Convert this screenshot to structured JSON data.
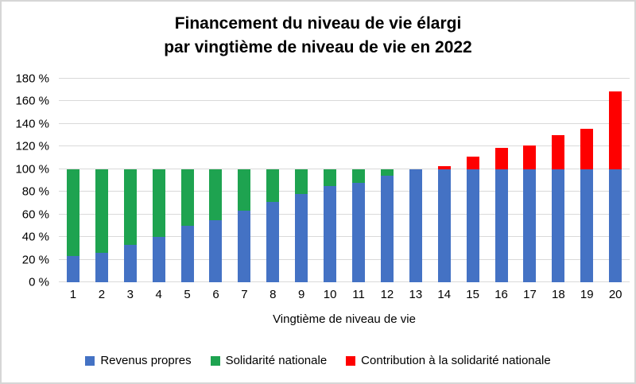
{
  "title": {
    "line1": "Financement du niveau de vie élargi",
    "line2": "par vingtième de niveau de vie en 2022"
  },
  "chart_data": {
    "type": "bar",
    "stacked": true,
    "title": "Financement du niveau de vie élargi par vingtième de niveau de vie en 2022",
    "categories": [
      "1",
      "2",
      "3",
      "4",
      "5",
      "6",
      "7",
      "8",
      "9",
      "10",
      "11",
      "12",
      "13",
      "14",
      "15",
      "16",
      "17",
      "18",
      "19",
      "20"
    ],
    "series": [
      {
        "name": "Revenus propres",
        "color": "#4472C4",
        "values": [
          23,
          26,
          33,
          40,
          50,
          55,
          63,
          71,
          78,
          85,
          88,
          94,
          100,
          100,
          100,
          100,
          100,
          100,
          100,
          100
        ]
      },
      {
        "name": "Solidarité nationale",
        "color": "#1EA350",
        "values": [
          77,
          74,
          67,
          60,
          50,
          45,
          37,
          29,
          22,
          15,
          12,
          6,
          0,
          0,
          0,
          0,
          0,
          0,
          0,
          0
        ]
      },
      {
        "name": "Contribution à la solidarité nationale",
        "color": "#FE0000",
        "values": [
          0,
          0,
          0,
          0,
          0,
          0,
          0,
          0,
          0,
          0,
          0,
          0,
          0,
          3,
          11,
          19,
          21,
          30,
          36,
          69
        ]
      }
    ],
    "xlabel": "Vingtième de niveau de vie",
    "ylabel": "",
    "ylim": [
      0,
      180
    ],
    "ytick_step": 20,
    "ytick_labels": [
      "0 %",
      "20 %",
      "40 %",
      "60 %",
      "80 %",
      "100 %",
      "120 %",
      "140 %",
      "160 %",
      "180 %"
    ],
    "grid": true,
    "legend_position": "bottom",
    "gridline_color": "#d9d9d9",
    "text_color": "#000000"
  }
}
